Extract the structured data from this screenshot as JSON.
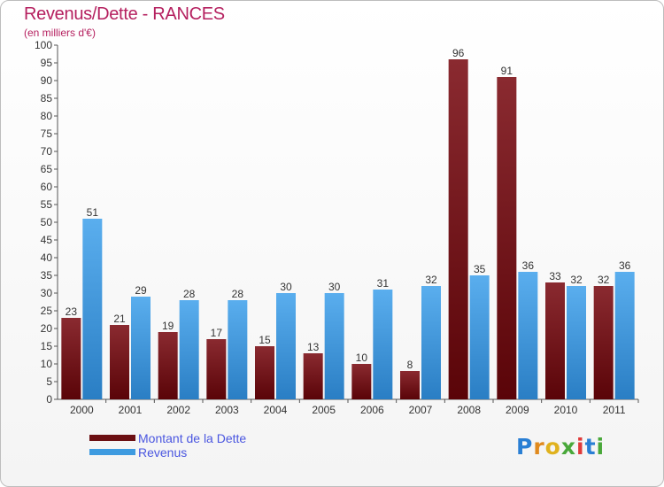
{
  "header": {
    "title": "Revenus/Dette - RANCES",
    "subtitle": "(en milliers d'€)"
  },
  "chart_data": {
    "type": "bar",
    "categories": [
      "2000",
      "2001",
      "2002",
      "2003",
      "2004",
      "2005",
      "2006",
      "2007",
      "2008",
      "2009",
      "2010",
      "2011"
    ],
    "series": [
      {
        "name": "Montant de la Dette",
        "color": "#7a1a1e",
        "values": [
          23,
          21,
          19,
          17,
          15,
          13,
          10,
          8,
          96,
          91,
          33,
          32
        ]
      },
      {
        "name": "Revenus",
        "color": "#3e9be0",
        "values": [
          51,
          29,
          28,
          28,
          30,
          30,
          31,
          32,
          35,
          36,
          32,
          36
        ]
      }
    ],
    "ylim": [
      0,
      100
    ],
    "ytick_step": 5,
    "grid": false,
    "legend_position": "bottom-left"
  },
  "legend": {
    "items": [
      {
        "label": "Montant de la Dette",
        "color": "#6b0f12"
      },
      {
        "label": "Revenus",
        "color": "#3e9be0"
      }
    ]
  },
  "logo": {
    "letters": [
      "P",
      "r",
      "o",
      "x",
      "i",
      "t",
      "i"
    ],
    "colors": [
      "#2a7fd4",
      "#e08a1e",
      "#e0b21e",
      "#49a83a",
      "#e03a3a",
      "#2a7fd4",
      "#49a83a"
    ]
  }
}
